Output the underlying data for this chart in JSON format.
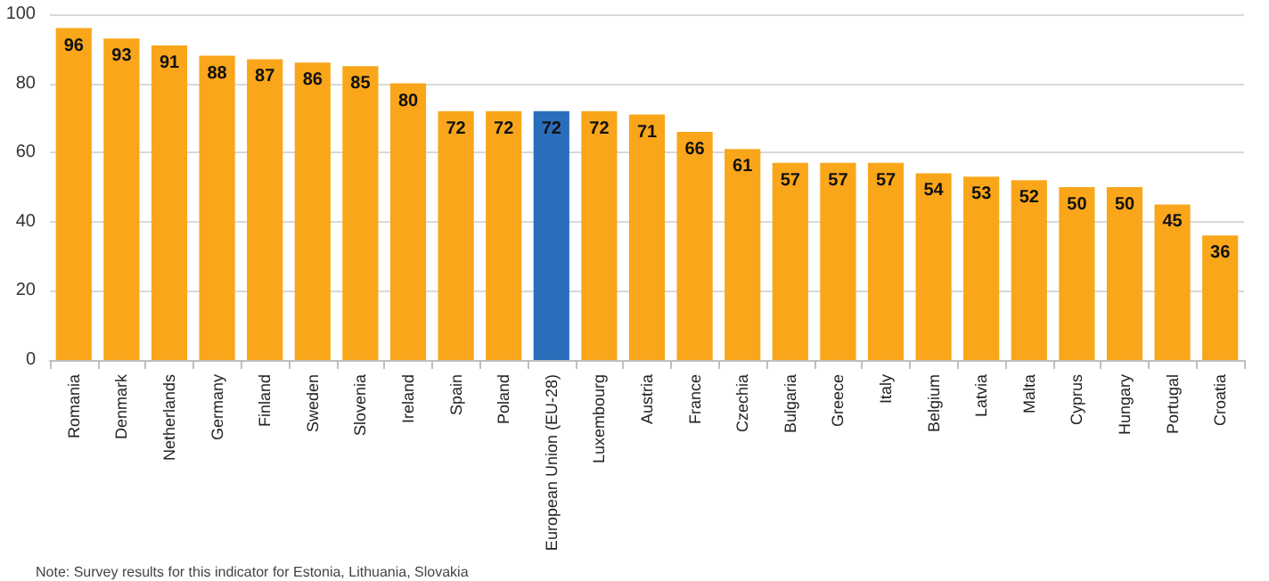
{
  "chart_data": {
    "type": "bar",
    "categories": [
      "Romania",
      "Denmark",
      "Netherlands",
      "Germany",
      "Finland",
      "Sweden",
      "Slovenia",
      "Ireland",
      "Spain",
      "Poland",
      "European Union (EU-28)",
      "Luxembourg",
      "Austria",
      "France",
      "Czechia",
      "Bulgaria",
      "Greece",
      "Italy",
      "Belgium",
      "Latvia",
      "Malta",
      "Cyprus",
      "Hungary",
      "Portugal",
      "Croatia"
    ],
    "values": [
      96,
      93,
      91,
      88,
      87,
      86,
      85,
      80,
      72,
      72,
      72,
      72,
      71,
      66,
      61,
      57,
      57,
      57,
      54,
      53,
      52,
      50,
      50,
      45,
      36
    ],
    "colors": [
      "#faa61a",
      "#faa61a",
      "#faa61a",
      "#faa61a",
      "#faa61a",
      "#faa61a",
      "#faa61a",
      "#faa61a",
      "#faa61a",
      "#faa61a",
      "#2a6ebb",
      "#faa61a",
      "#faa61a",
      "#faa61a",
      "#faa61a",
      "#faa61a",
      "#faa61a",
      "#faa61a",
      "#faa61a",
      "#faa61a",
      "#faa61a",
      "#faa61a",
      "#faa61a",
      "#faa61a",
      "#faa61a"
    ],
    "ylim": [
      0,
      100
    ],
    "yticks": [
      0,
      20,
      40,
      60,
      80,
      100
    ],
    "grid": "y",
    "data_labels": true,
    "annotations": [
      "Note: Survey results for this indicator for Estonia, Lithuania, Slovakia"
    ]
  }
}
